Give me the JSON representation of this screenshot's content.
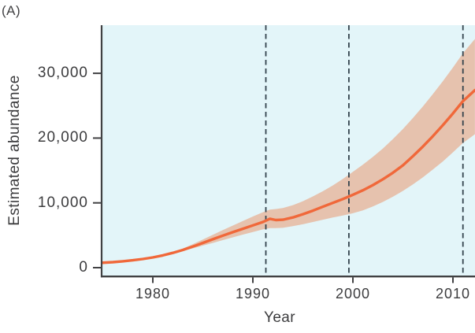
{
  "figure": {
    "panel_label": "(A)"
  },
  "colors": {
    "plot_background": "#e3f5f9",
    "band": "#e6c2ae",
    "line": "#f0683a",
    "dashed_line": "#33424c",
    "axis": "#414143",
    "text": "#3c3c3e"
  },
  "chart_data": {
    "type": "line",
    "title": "",
    "xlabel": "Year",
    "ylabel": "Estimated abundance",
    "x_range": [
      1974.9,
      2012.2
    ],
    "y_range": [
      -1400,
      38300
    ],
    "grid": false,
    "legend": false,
    "x": [
      1974.9,
      1976,
      1977,
      1978,
      1979,
      1980,
      1981,
      1982,
      1983,
      1984,
      1985,
      1986,
      1987,
      1988,
      1989,
      1990,
      1991,
      1991.7,
      1992.3,
      1993,
      1994,
      1995,
      1996,
      1997,
      1998,
      1999,
      2000,
      2001,
      2002,
      2003,
      2004,
      2005,
      2006,
      2007,
      2008,
      2009,
      2010,
      2011,
      2012.2
    ],
    "series": [
      {
        "name": "mean",
        "label": "estimated abundance (model mean)",
        "values": [
          750,
          850,
          980,
          1140,
          1340,
          1580,
          1900,
          2280,
          2730,
          3260,
          3820,
          4390,
          4950,
          5480,
          6000,
          6520,
          7050,
          7550,
          7350,
          7400,
          7750,
          8250,
          8800,
          9400,
          10000,
          10600,
          11250,
          11950,
          12750,
          13650,
          14650,
          15800,
          17200,
          18700,
          20300,
          22000,
          23800,
          25700,
          27400
        ]
      },
      {
        "name": "lower_95",
        "label": "confidence band lower bound",
        "values": [
          750,
          850,
          980,
          1140,
          1340,
          1580,
          1900,
          2280,
          2580,
          2980,
          3400,
          3820,
          4250,
          4680,
          5100,
          5500,
          5900,
          6100,
          6100,
          6150,
          6400,
          6700,
          7050,
          7400,
          7750,
          8050,
          8400,
          8850,
          9450,
          10150,
          10950,
          11850,
          12850,
          13950,
          15150,
          16400,
          17800,
          19250,
          20600
        ]
      },
      {
        "name": "upper_95",
        "label": "confidence band upper bound",
        "values": [
          750,
          850,
          980,
          1140,
          1340,
          1580,
          1900,
          2280,
          2950,
          3630,
          4350,
          5080,
          5800,
          6500,
          7200,
          7900,
          8550,
          8950,
          9050,
          9200,
          9650,
          10250,
          11000,
          11800,
          12700,
          13700,
          14800,
          15900,
          17100,
          18400,
          19850,
          21400,
          23100,
          24900,
          26800,
          28800,
          30900,
          33100,
          35300
        ]
      }
    ],
    "dashed_lines_x": [
      1991.3,
      1999.6,
      2011.0
    ],
    "xticks": {
      "values": [
        1980,
        1990,
        2000,
        2010
      ],
      "labels": [
        "1980",
        "1990",
        "2000",
        "2010"
      ]
    },
    "yticks": {
      "values": [
        0,
        10000,
        20000,
        30000
      ],
      "labels": [
        "0",
        "10,000",
        "20,000",
        "30,000"
      ]
    }
  }
}
